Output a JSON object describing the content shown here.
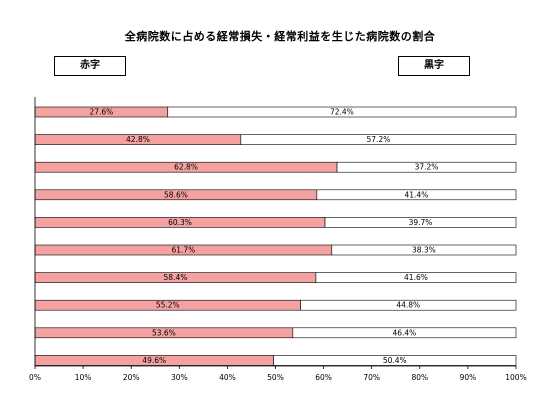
{
  "chart_data": {
    "type": "bar",
    "orientation": "horizontal",
    "stacked": true,
    "title": "全病院数に占める経常損失・経常利益を生じた病院数の割合",
    "xlabel": "",
    "ylabel": "",
    "xlim": [
      0,
      100
    ],
    "x_ticks": [
      "0%",
      "10%",
      "20%",
      "30%",
      "40%",
      "50%",
      "60%",
      "70%",
      "80%",
      "90%",
      "100%"
    ],
    "grid": false,
    "legend": {
      "placement": "top",
      "entries": [
        "赤字",
        "黒字"
      ]
    },
    "series": [
      {
        "name": "赤字",
        "color": "#f4a1a1",
        "values": [
          27.6,
          42.8,
          62.8,
          58.6,
          60.3,
          61.7,
          58.4,
          55.2,
          53.6,
          49.6
        ],
        "labels": [
          "27.6%",
          "42.8%",
          "62.8%",
          "58.6%",
          "60.3%",
          "61.7%",
          "58.4%",
          "55.2%",
          "53.6%",
          "49.6%"
        ]
      },
      {
        "name": "黒字",
        "color": "#ffffff",
        "values": [
          72.4,
          57.2,
          37.2,
          41.4,
          39.7,
          38.3,
          41.6,
          44.8,
          46.4,
          50.4
        ],
        "labels": [
          "72.4%",
          "57.2%",
          "37.2%",
          "41.4%",
          "39.7%",
          "38.3%",
          "41.6%",
          "44.8%",
          "46.4%",
          "50.4%"
        ]
      }
    ]
  }
}
